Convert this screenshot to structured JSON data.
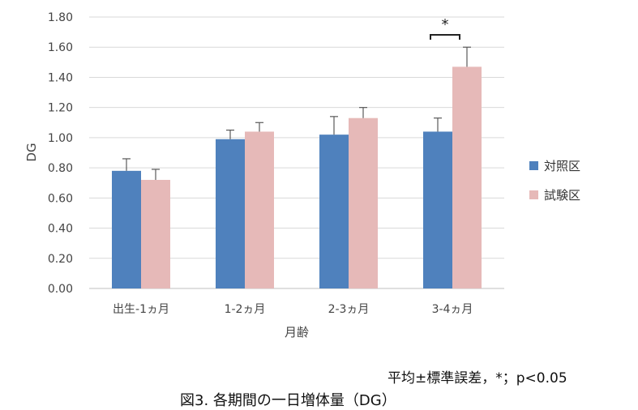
{
  "chart_data": {
    "type": "bar",
    "categories": [
      "出生-1ヵ月",
      "1-2ヵ月",
      "2-3ヵ月",
      "3-4ヵ月"
    ],
    "series": [
      {
        "name": "対照区",
        "color": "#4f81bd",
        "values": [
          0.78,
          0.99,
          1.02,
          1.04
        ],
        "errors": [
          0.08,
          0.06,
          0.12,
          0.09
        ]
      },
      {
        "name": "試験区",
        "color": "#e6b9b8",
        "values": [
          0.72,
          1.04,
          1.13,
          1.47
        ],
        "errors": [
          0.07,
          0.06,
          0.07,
          0.13
        ]
      }
    ],
    "xlabel": "月齢",
    "ylabel": "DG",
    "ylim": [
      0,
      1.8
    ],
    "yticks": [
      "0.00",
      "0.20",
      "0.40",
      "0.60",
      "0.80",
      "1.00",
      "1.20",
      "1.40",
      "1.60",
      "1.80"
    ],
    "ytick_values": [
      0,
      0.2,
      0.4,
      0.6,
      0.8,
      1.0,
      1.2,
      1.4,
      1.6,
      1.8
    ],
    "grid": true,
    "legend_position": "right",
    "significance": {
      "category_index": 3,
      "label": "*"
    }
  },
  "note": "平均±標準誤差，*；p<0.05",
  "caption": "図3. 各期間の一日増体量（DG）"
}
